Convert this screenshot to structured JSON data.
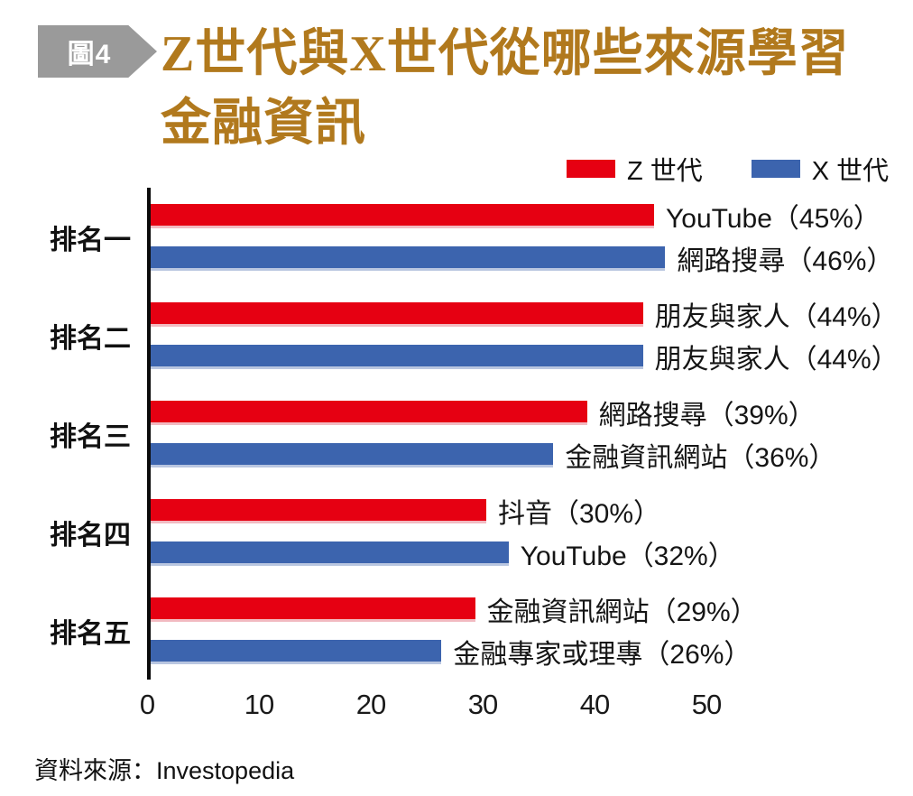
{
  "figure_badge": "圖4",
  "title": {
    "line1": "Z世代與X世代從哪些來源學習",
    "line2": "金融資訊"
  },
  "legend": [
    {
      "label": "Z 世代",
      "color": "#e60012"
    },
    {
      "label": "X 世代",
      "color": "#3c64ae"
    }
  ],
  "colors": {
    "title_gold": "#b1791d",
    "badge_gray": "#9a9a9a",
    "genz_red": "#e60012",
    "genx_blue": "#3c64ae",
    "genz_red_edge": "#f2bac1",
    "genx_blue_edge": "#b9c6e0",
    "axis_black": "#0b0b0b"
  },
  "source": {
    "text": "資料來源：Investopedia"
  },
  "chart_data": {
    "type": "bar",
    "orientation": "horizontal",
    "title": "Z世代與X世代從哪些來源學習金融資訊",
    "categories": [
      "排名一",
      "排名二",
      "排名三",
      "排名四",
      "排名五"
    ],
    "series": [
      {
        "name": "Z 世代",
        "color": "#e60012",
        "edge_color": "#f2bac1",
        "values": [
          45,
          44,
          39,
          30,
          29
        ],
        "labels": [
          "YouTube（45%）",
          "朋友與家人（44%）",
          "網路搜尋（39%）",
          "抖音（30%）",
          "金融資訊網站（29%）"
        ]
      },
      {
        "name": "X 世代",
        "color": "#3c64ae",
        "edge_color": "#b9c6e0",
        "values": [
          46,
          44,
          36,
          32,
          26
        ],
        "labels": [
          "網路搜尋（46%）",
          "朋友與家人（44%）",
          "金融資訊網站（36%）",
          "YouTube（32%）",
          "金融專家或理專（26%）"
        ]
      }
    ],
    "x_ticks": [
      0,
      10,
      20,
      30,
      40,
      50
    ],
    "xlim": [
      0,
      50
    ],
    "grid": false,
    "legend_position": "top-right",
    "source": "Investopedia"
  }
}
